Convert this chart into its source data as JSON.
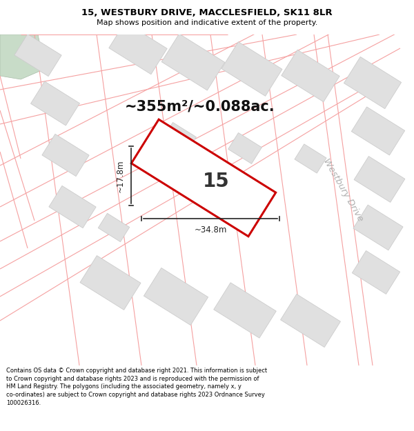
{
  "title_line1": "15, WESTBURY DRIVE, MACCLESFIELD, SK11 8LR",
  "title_line2": "Map shows position and indicative extent of the property.",
  "area_text": "~355m²/~0.088ac.",
  "property_number": "15",
  "dim_width": "~34.8m",
  "dim_height": "~17.8m",
  "street_label": "Westbury Drive",
  "footer_text": "Contains OS data © Crown copyright and database right 2021. This information is subject\nto Crown copyright and database rights 2023 and is reproduced with the permission of\nHM Land Registry. The polygons (including the associated geometry, namely x, y\nco-ordinates) are subject to Crown copyright and database rights 2023 Ordnance Survey\n100026316.",
  "bg_color": "#ffffff",
  "map_bg_color": "#f2f2f2",
  "building_color": "#e0e0e0",
  "building_edge_color": "#cccccc",
  "road_line_color": "#f5a0a0",
  "road_line_color2": "#d4b8b8",
  "plot_outline_color": "#cc0000",
  "plot_fill_color": "#ffffff",
  "dim_line_color": "#222222",
  "street_label_color": "#b0b0b0",
  "title_color": "#000000",
  "footer_color": "#000000",
  "green_color": "#c8dcc8",
  "green_edge": "#a8bca8",
  "title_fs": 9.5,
  "subtitle_fs": 8.0,
  "area_fs": 15.0,
  "num_fs": 20,
  "dim_fs": 8.5,
  "street_fs": 9.5,
  "footer_fs": 6.0
}
